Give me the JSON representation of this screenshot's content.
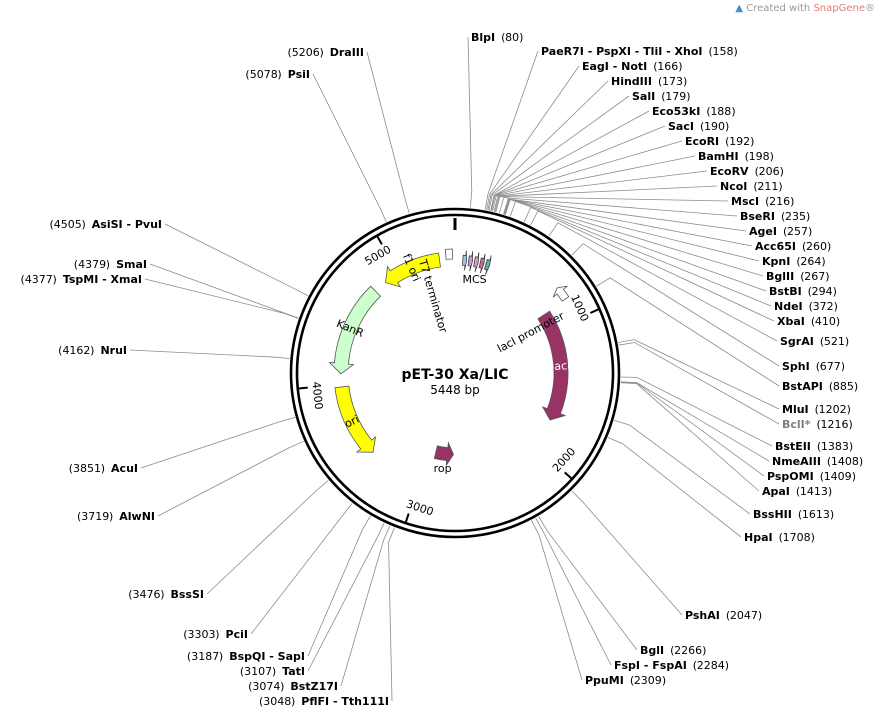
{
  "credit": {
    "prefix": "Created with ",
    "brand": "SnapGene",
    "suffix": "®"
  },
  "plasmid": {
    "name": "pET-30 Xa/LIC",
    "length": "5448 bp"
  },
  "ticks": [
    {
      "label": "5000",
      "pos": 5000
    },
    {
      "label": "1000",
      "pos": 1000
    },
    {
      "label": "2000",
      "pos": 2000
    },
    {
      "label": "3000",
      "pos": 3000
    },
    {
      "label": "4000",
      "pos": 4000
    }
  ],
  "features": [
    {
      "name": "f1 ori",
      "start": 4880,
      "end": 5330,
      "color": "#ffff00",
      "direction": "ccw"
    },
    {
      "name": "KanR",
      "start": 4080,
      "end": 4780,
      "color": "#ccffcc",
      "direction": "ccw"
    },
    {
      "name": "ori",
      "start": 3420,
      "end": 3980,
      "color": "#ffff00",
      "direction": "ccw"
    },
    {
      "name": "rop",
      "start": 2740,
      "end": 2930,
      "color": "#993366",
      "direction": "ccw"
    },
    {
      "name": "lacI",
      "start": 860,
      "end": 1760,
      "color": "#993366",
      "direction": "cw"
    },
    {
      "name": "lacI promoter",
      "start": 760,
      "end": 850,
      "color": "#ffffff",
      "direction": "ccw"
    },
    {
      "name": "T7 terminator",
      "start": 5380,
      "end": 5430,
      "color": "#ffffff",
      "direction": "none"
    },
    {
      "name": "MCS",
      "start": 60,
      "end": 300,
      "color": "#cccccc",
      "direction": "none"
    }
  ],
  "sites": [
    {
      "name": "BlpI",
      "pos": "80",
      "p": 80
    },
    {
      "name": "PaeR7I - PspXI - TliI - XhoI",
      "pos": "158",
      "p": 158
    },
    {
      "name": "EagI - NotI",
      "pos": "166",
      "p": 166
    },
    {
      "name": "HindIII",
      "pos": "173",
      "p": 173
    },
    {
      "name": "SalI",
      "pos": "179",
      "p": 179
    },
    {
      "name": "Eco53kI",
      "pos": "188",
      "p": 188
    },
    {
      "name": "SacI",
      "pos": "190",
      "p": 190
    },
    {
      "name": "EcoRI",
      "pos": "192",
      "p": 192
    },
    {
      "name": "BamHI",
      "pos": "198",
      "p": 198
    },
    {
      "name": "EcoRV",
      "pos": "206",
      "p": 206
    },
    {
      "name": "NcoI",
      "pos": "211",
      "p": 211
    },
    {
      "name": "MscI",
      "pos": "216",
      "p": 216
    },
    {
      "name": "BseRI",
      "pos": "235",
      "p": 235
    },
    {
      "name": "AgeI",
      "pos": "257",
      "p": 257
    },
    {
      "name": "Acc65I",
      "pos": "260",
      "p": 260
    },
    {
      "name": "KpnI",
      "pos": "264",
      "p": 264
    },
    {
      "name": "BglII",
      "pos": "267",
      "p": 267
    },
    {
      "name": "BstBI",
      "pos": "294",
      "p": 294
    },
    {
      "name": "NdeI",
      "pos": "372",
      "p": 372
    },
    {
      "name": "XbaI",
      "pos": "410",
      "p": 410
    },
    {
      "name": "SgrAI",
      "pos": "521",
      "p": 521
    },
    {
      "name": "SphI",
      "pos": "677",
      "p": 677
    },
    {
      "name": "BstAPI",
      "pos": "885",
      "p": 885
    },
    {
      "name": "MluI",
      "pos": "1202",
      "p": 1202
    },
    {
      "name": "BclI*",
      "pos": "1216",
      "p": 1216,
      "gray": true
    },
    {
      "name": "BstEII",
      "pos": "1383",
      "p": 1383
    },
    {
      "name": "NmeAIII",
      "pos": "1408",
      "p": 1408
    },
    {
      "name": "PspOMI",
      "pos": "1409",
      "p": 1409
    },
    {
      "name": "ApaI",
      "pos": "1413",
      "p": 1413
    },
    {
      "name": "BssHII",
      "pos": "1613",
      "p": 1613
    },
    {
      "name": "HpaI",
      "pos": "1708",
      "p": 1708
    },
    {
      "name": "PshAI",
      "pos": "2047",
      "p": 2047
    },
    {
      "name": "BglI",
      "pos": "2266",
      "p": 2266
    },
    {
      "name": "FspI - FspAI",
      "pos": "2284",
      "p": 2284
    },
    {
      "name": "PpuMI",
      "pos": "2309",
      "p": 2309
    },
    {
      "name": "PflFI - Tth111I",
      "pos": "3048",
      "p": 3048
    },
    {
      "name": "BstZ17I",
      "pos": "3074",
      "p": 3074
    },
    {
      "name": "TatI",
      "pos": "3107",
      "p": 3107
    },
    {
      "name": "BspQI - SapI",
      "pos": "3187",
      "p": 3187
    },
    {
      "name": "PciI",
      "pos": "3303",
      "p": 3303
    },
    {
      "name": "BssSI",
      "pos": "3476",
      "p": 3476
    },
    {
      "name": "AlwNI",
      "pos": "3719",
      "p": 3719
    },
    {
      "name": "AcuI",
      "pos": "3851",
      "p": 3851
    },
    {
      "name": "NruI",
      "pos": "4162",
      "p": 4162
    },
    {
      "name": "TspMI - XmaI",
      "pos": "4377",
      "p": 4377
    },
    {
      "name": "SmaI",
      "pos": "4379",
      "p": 4379
    },
    {
      "name": "AsiSI - PvuI",
      "pos": "4505",
      "p": 4505
    },
    {
      "name": "PsiI",
      "pos": "5078",
      "p": 5078
    },
    {
      "name": "DraIII",
      "pos": "5206",
      "p": 5206
    }
  ]
}
